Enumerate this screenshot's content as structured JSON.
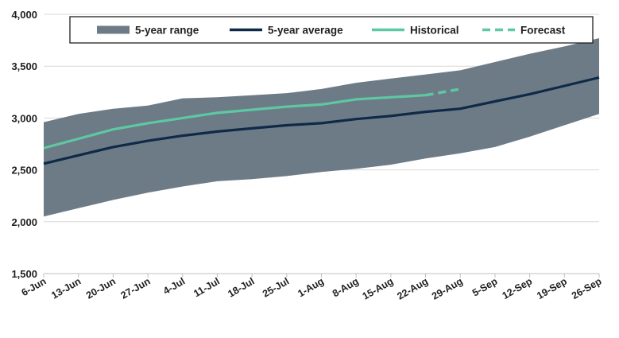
{
  "chart_data": {
    "type": "line",
    "categories": [
      "6-Jun",
      "13-Jun",
      "20-Jun",
      "27-Jun",
      "4-Jul",
      "11-Jul",
      "18-Jul",
      "25-Jul",
      "1-Aug",
      "8-Aug",
      "15-Aug",
      "22-Aug",
      "29-Aug",
      "5-Sep",
      "12-Sep",
      "19-Sep",
      "26-Sep"
    ],
    "ylim": [
      1500,
      4000
    ],
    "yticks": [
      1500,
      2000,
      2500,
      3000,
      3500,
      4000
    ],
    "ytick_labels": [
      "1,500",
      "2,000",
      "2,500",
      "3,000",
      "3,500",
      "4,000"
    ],
    "grid": "horizontal",
    "legend_position": "top",
    "series": [
      {
        "name": "5-year range",
        "kind": "band",
        "low": [
          2050,
          2130,
          2210,
          2280,
          2340,
          2390,
          2410,
          2440,
          2480,
          2510,
          2550,
          2610,
          2660,
          2720,
          2820,
          2930,
          3040
        ],
        "high": [
          2960,
          3040,
          3090,
          3120,
          3190,
          3200,
          3220,
          3240,
          3280,
          3340,
          3380,
          3420,
          3460,
          3540,
          3620,
          3690,
          3770
        ],
        "color": "#6d7b87"
      },
      {
        "name": "5-year average",
        "kind": "line",
        "values": [
          2560,
          2640,
          2720,
          2780,
          2830,
          2870,
          2900,
          2930,
          2950,
          2990,
          3020,
          3060,
          3090,
          3160,
          3230,
          3310,
          3390
        ],
        "color": "#0e2a47"
      },
      {
        "name": "Historical",
        "kind": "line",
        "values": [
          2710,
          2800,
          2890,
          2950,
          3000,
          3050,
          3080,
          3110,
          3130,
          3180,
          3200,
          3220,
          null,
          null,
          null,
          null,
          null
        ],
        "color": "#5dc8a1"
      },
      {
        "name": "Forecast",
        "kind": "dashed",
        "values": [
          null,
          null,
          null,
          null,
          null,
          null,
          null,
          null,
          null,
          null,
          null,
          3220,
          3280,
          null,
          null,
          null,
          null
        ],
        "color": "#5dc8a1"
      }
    ]
  }
}
